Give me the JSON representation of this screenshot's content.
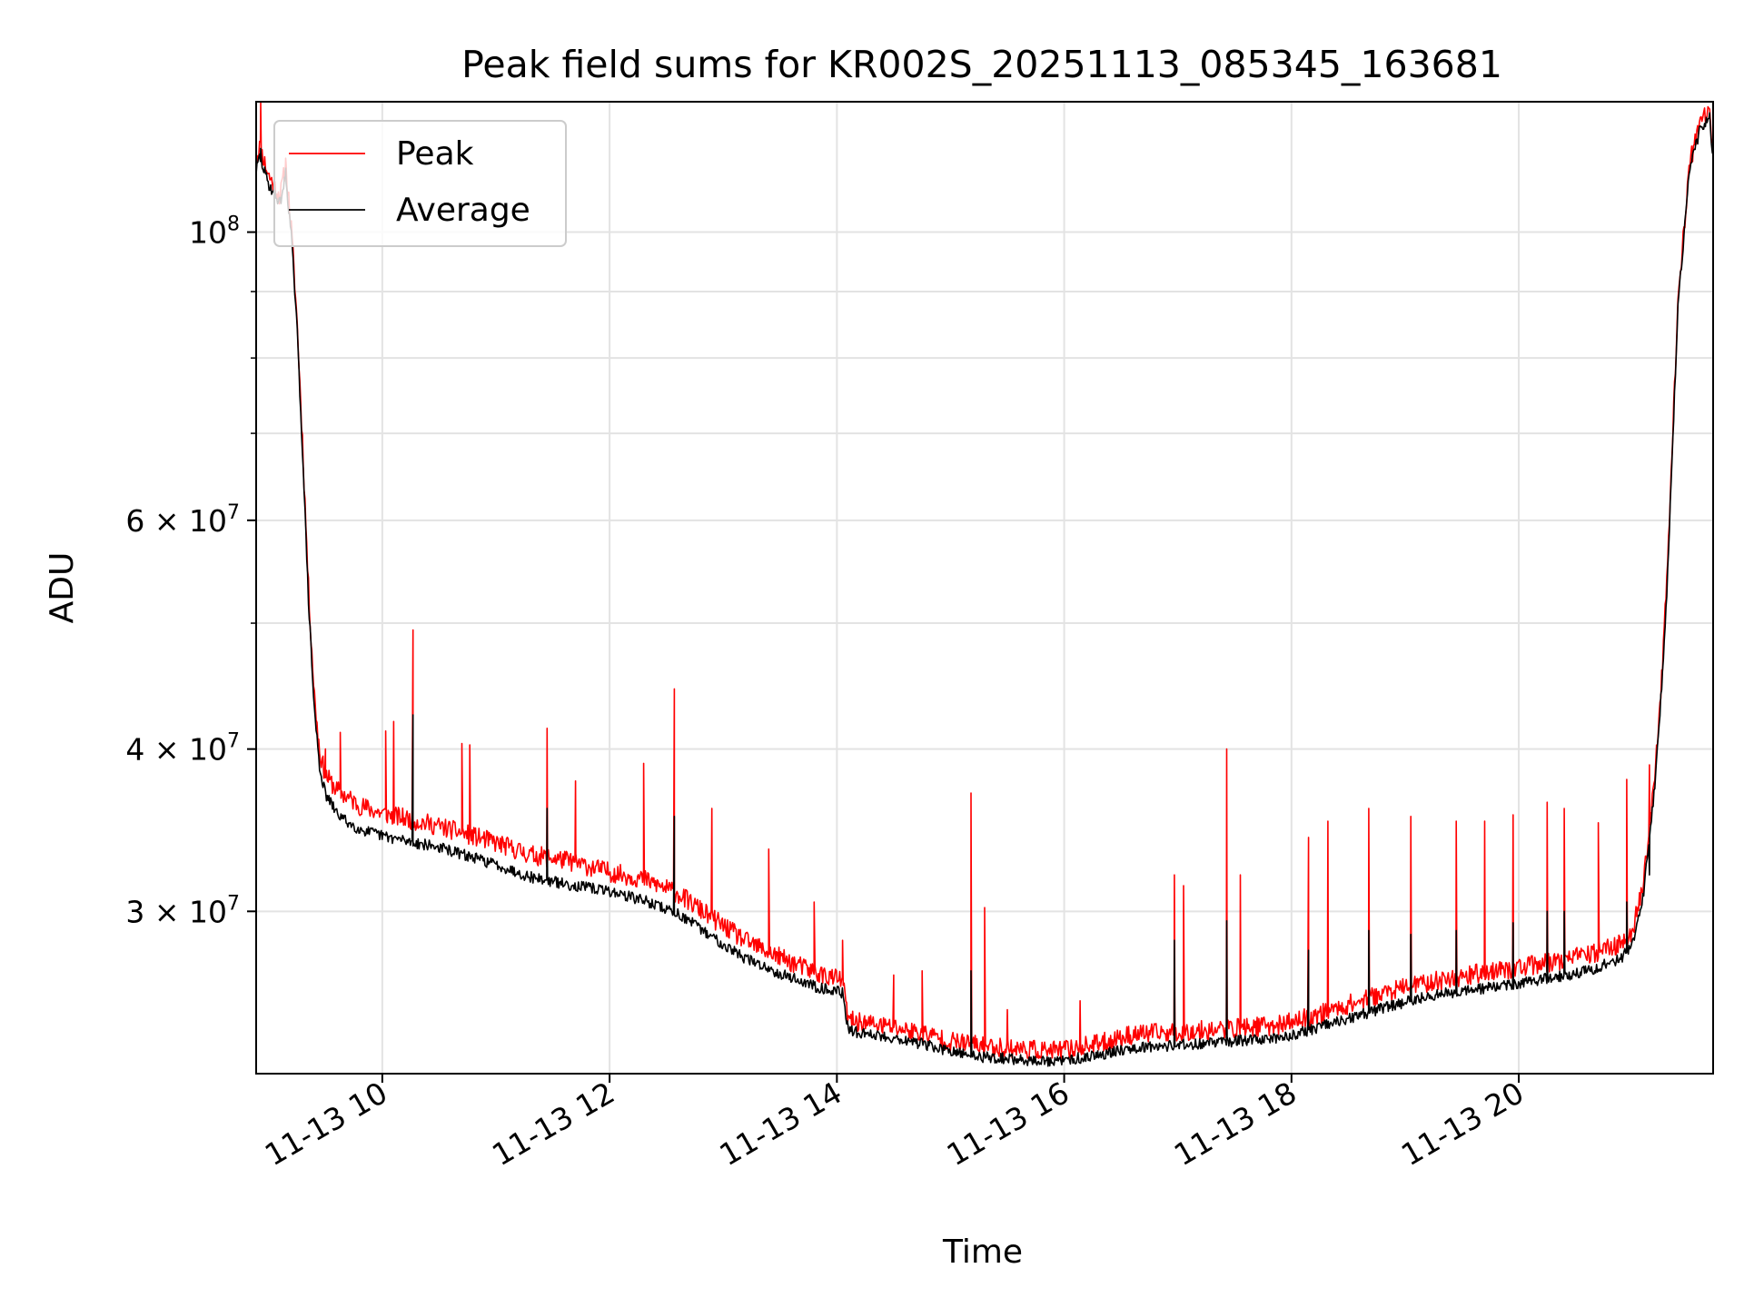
{
  "chart_data": {
    "type": "line",
    "title": "Peak field sums for KR002S_20251113_085345_163681",
    "xlabel": "Time",
    "ylabel": "ADU",
    "yscale": "log",
    "x_unit": "hours",
    "xlim": [
      8.89,
      21.71
    ],
    "ylim": [
      22500000,
      126000000
    ],
    "grid": true,
    "legend_position": "upper-left",
    "x_ticks": [
      {
        "value": 10,
        "label": "11-13 10"
      },
      {
        "value": 12,
        "label": "11-13 12"
      },
      {
        "value": 14,
        "label": "11-13 14"
      },
      {
        "value": 16,
        "label": "11-13 16"
      },
      {
        "value": 18,
        "label": "11-13 18"
      },
      {
        "value": 20,
        "label": "11-13 20"
      }
    ],
    "y_ticks": [
      {
        "value": 100000000,
        "base": "10",
        "exp": "8"
      },
      {
        "value": 60000000,
        "base": "6 × 10",
        "exp": "7"
      },
      {
        "value": 40000000,
        "base": "4 × 10",
        "exp": "7"
      },
      {
        "value": 30000000,
        "base": "3 × 10",
        "exp": "7"
      }
    ],
    "y_minor_ticks": [
      50000000,
      70000000,
      80000000,
      90000000
    ],
    "series": [
      {
        "name": "Peak",
        "color": "#ff0000",
        "x": [
          8.89,
          8.92,
          9.0,
          9.1,
          9.15,
          9.2,
          9.25,
          9.3,
          9.35,
          9.4,
          9.45,
          9.5,
          9.55,
          9.6,
          9.7,
          9.8,
          10.0,
          10.2,
          10.5,
          10.8,
          11.0,
          11.3,
          11.6,
          12.0,
          12.3,
          12.6,
          12.9,
          13.2,
          13.5,
          13.8,
          14.05,
          14.1,
          14.5,
          14.8,
          15.0,
          15.3,
          15.6,
          15.9,
          16.0,
          16.3,
          16.6,
          17.0,
          17.3,
          17.6,
          17.9,
          18.2,
          18.5,
          18.8,
          19.1,
          19.4,
          19.7,
          20.0,
          20.3,
          20.6,
          20.9,
          21.0,
          21.1,
          21.2,
          21.25,
          21.3,
          21.35,
          21.4,
          21.5,
          21.6,
          21.68,
          21.7
        ],
        "y": [
          113000000,
          116000000,
          110000000,
          106000000,
          112000000,
          100000000,
          85000000,
          68000000,
          53000000,
          44000000,
          39500000,
          38000000,
          37500000,
          37000000,
          36500000,
          36000000,
          35500000,
          35200000,
          34700000,
          34100000,
          33700000,
          33000000,
          32700000,
          32000000,
          31600000,
          30800000,
          29500000,
          28300000,
          27500000,
          26800000,
          26400000,
          24600000,
          24300000,
          24000000,
          23700000,
          23500000,
          23400000,
          23300000,
          23350000,
          23600000,
          24000000,
          24100000,
          24200000,
          24300000,
          24400000,
          24800000,
          25300000,
          25800000,
          26200000,
          26500000,
          26800000,
          27000000,
          27300000,
          27600000,
          28200000,
          28800000,
          31500000,
          38000000,
          44000000,
          53000000,
          68000000,
          88000000,
          112000000,
          121000000,
          123000000,
          116000000
        ],
        "spikes": [
          [
            8.93,
            126000000
          ],
          [
            9.15,
            114000000
          ],
          [
            9.5,
            40000000
          ],
          [
            9.63,
            41200000
          ],
          [
            10.03,
            41300000
          ],
          [
            10.1,
            42000000
          ],
          [
            10.27,
            49400000
          ],
          [
            10.7,
            40400000
          ],
          [
            10.77,
            40300000
          ],
          [
            11.45,
            41500000
          ],
          [
            11.7,
            37800000
          ],
          [
            12.3,
            39000000
          ],
          [
            12.57,
            44500000
          ],
          [
            12.9,
            36000000
          ],
          [
            13.4,
            33500000
          ],
          [
            13.8,
            30500000
          ],
          [
            14.05,
            28500000
          ],
          [
            14.5,
            26800000
          ],
          [
            14.75,
            27000000
          ],
          [
            15.18,
            37000000
          ],
          [
            15.3,
            30200000
          ],
          [
            15.5,
            25200000
          ],
          [
            16.14,
            25600000
          ],
          [
            16.97,
            32000000
          ],
          [
            17.05,
            31400000
          ],
          [
            17.43,
            40000000
          ],
          [
            17.55,
            32000000
          ],
          [
            18.15,
            34200000
          ],
          [
            18.32,
            35200000
          ],
          [
            18.68,
            36000000
          ],
          [
            19.05,
            35500000
          ],
          [
            19.45,
            35200000
          ],
          [
            19.7,
            35200000
          ],
          [
            19.95,
            35600000
          ],
          [
            20.25,
            36400000
          ],
          [
            20.4,
            36000000
          ],
          [
            20.7,
            35100000
          ],
          [
            20.95,
            37900000
          ],
          [
            21.15,
            38900000
          ]
        ]
      },
      {
        "name": "Average",
        "color": "#000000",
        "x": [
          8.89,
          8.92,
          9.0,
          9.1,
          9.15,
          9.2,
          9.25,
          9.3,
          9.35,
          9.4,
          9.45,
          9.5,
          9.55,
          9.6,
          9.7,
          9.8,
          10.0,
          10.2,
          10.5,
          10.8,
          11.0,
          11.3,
          11.6,
          12.0,
          12.3,
          12.6,
          12.9,
          13.2,
          13.5,
          13.8,
          14.05,
          14.1,
          14.5,
          14.8,
          15.0,
          15.3,
          15.6,
          15.9,
          16.0,
          16.3,
          16.6,
          17.0,
          17.3,
          17.6,
          17.9,
          18.2,
          18.5,
          18.8,
          19.1,
          19.4,
          19.7,
          20.0,
          20.3,
          20.6,
          20.9,
          21.0,
          21.1,
          21.2,
          21.25,
          21.3,
          21.35,
          21.4,
          21.5,
          21.6,
          21.68,
          21.7
        ],
        "y": [
          111000000,
          114000000,
          108500000,
          105000000,
          110000000,
          99000000,
          84000000,
          67000000,
          52000000,
          43000000,
          38500000,
          36800000,
          36200000,
          35600000,
          35000000,
          34600000,
          34200000,
          33900000,
          33500000,
          32900000,
          32500000,
          31800000,
          31400000,
          31000000,
          30500000,
          29800000,
          28600000,
          27500000,
          26800000,
          26200000,
          25900000,
          24200000,
          23900000,
          23600000,
          23300000,
          23100000,
          23000000,
          22900000,
          22950000,
          23200000,
          23500000,
          23600000,
          23700000,
          23800000,
          23900000,
          24300000,
          24700000,
          25200000,
          25600000,
          25900000,
          26100000,
          26300000,
          26600000,
          26900000,
          27500000,
          28200000,
          31000000,
          37500000,
          43500000,
          52000000,
          67000000,
          87000000,
          111000000,
          120000000,
          122000000,
          115000000
        ],
        "spikes": [
          [
            8.93,
            116000000
          ],
          [
            9.15,
            112000000
          ],
          [
            10.27,
            42500000
          ],
          [
            11.45,
            36000000
          ],
          [
            12.57,
            35500000
          ],
          [
            15.18,
            27000000
          ],
          [
            16.97,
            28500000
          ],
          [
            17.43,
            29500000
          ],
          [
            18.15,
            28000000
          ],
          [
            18.68,
            29000000
          ],
          [
            19.05,
            28800000
          ],
          [
            19.45,
            29000000
          ],
          [
            19.95,
            29400000
          ],
          [
            20.25,
            30000000
          ],
          [
            20.4,
            30000000
          ],
          [
            20.95,
            30500000
          ],
          [
            21.15,
            32000000
          ]
        ]
      }
    ]
  }
}
